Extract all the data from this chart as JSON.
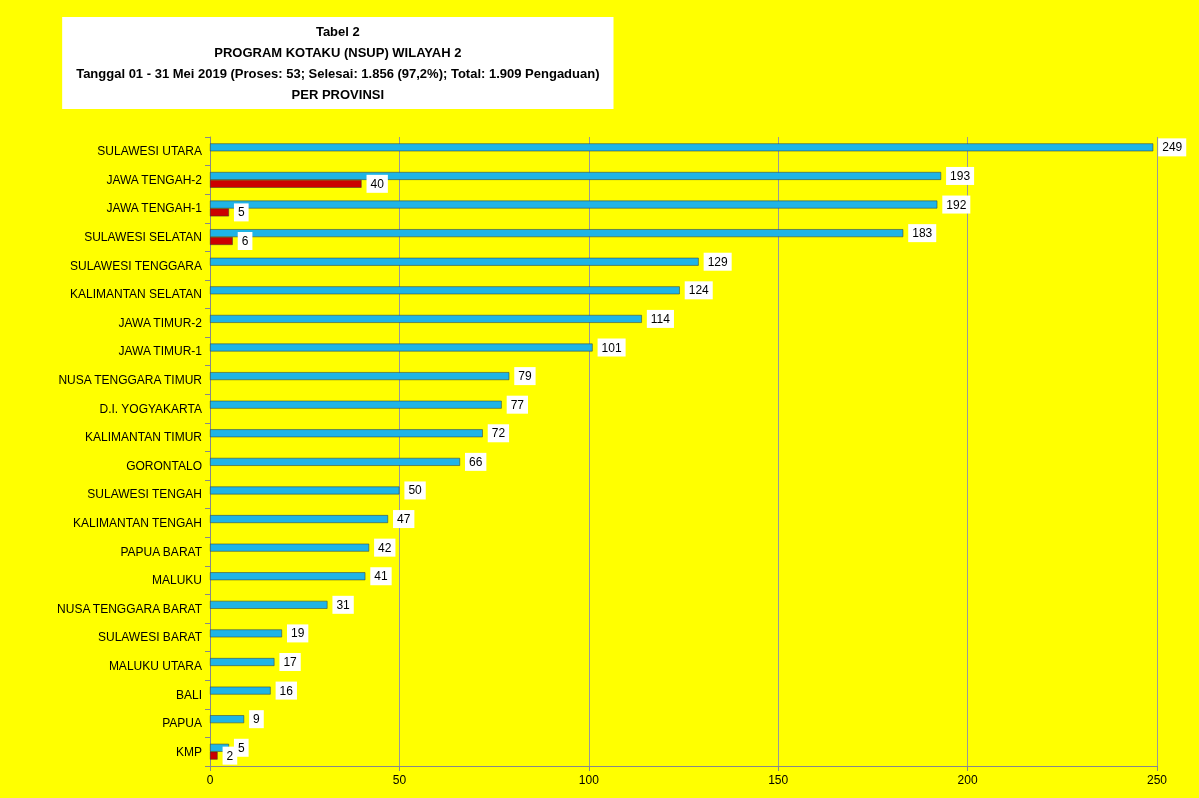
{
  "chart_data": {
    "type": "bar",
    "orientation": "horizontal",
    "title": "Tabel 2\nPROGRAM KOTAKU (NSUP) WILAYAH 2\nTanggal 01 - 31 Mei 2019 (Proses: 53; Selesai: 1.856 (97,2%); Total: 1.909 Pengaduan)\nPER PROVINSI",
    "categories": [
      "SULAWESI UTARA",
      "JAWA TENGAH-2",
      "JAWA TENGAH-1",
      "SULAWESI SELATAN",
      "SULAWESI TENGGARA",
      "KALIMANTAN SELATAN",
      "JAWA TIMUR-2",
      "JAWA TIMUR-1",
      "NUSA TENGGARA TIMUR",
      "D.I. YOGYAKARTA",
      "KALIMANTAN TIMUR",
      "GORONTALO",
      "SULAWESI TENGAH",
      "KALIMANTAN TENGAH",
      "PAPUA BARAT",
      "MALUKU",
      "NUSA TENGGARA BARAT",
      "SULAWESI BARAT",
      "MALUKU UTARA",
      "BALI",
      "PAPUA",
      "KMP"
    ],
    "series": [
      {
        "color": "#1fb4e6",
        "values": [
          249,
          193,
          192,
          183,
          129,
          124,
          114,
          101,
          79,
          77,
          72,
          66,
          50,
          47,
          42,
          41,
          31,
          19,
          17,
          16,
          9,
          5
        ]
      },
      {
        "color": "#cc0000",
        "values": [
          null,
          40,
          5,
          6,
          null,
          null,
          null,
          null,
          null,
          null,
          null,
          null,
          null,
          null,
          null,
          null,
          null,
          null,
          null,
          null,
          null,
          2
        ]
      }
    ],
    "xlim": [
      0,
      250
    ],
    "xticks": [
      0,
      50,
      100,
      150,
      200,
      250
    ],
    "grid": "x",
    "data_labels": true
  }
}
